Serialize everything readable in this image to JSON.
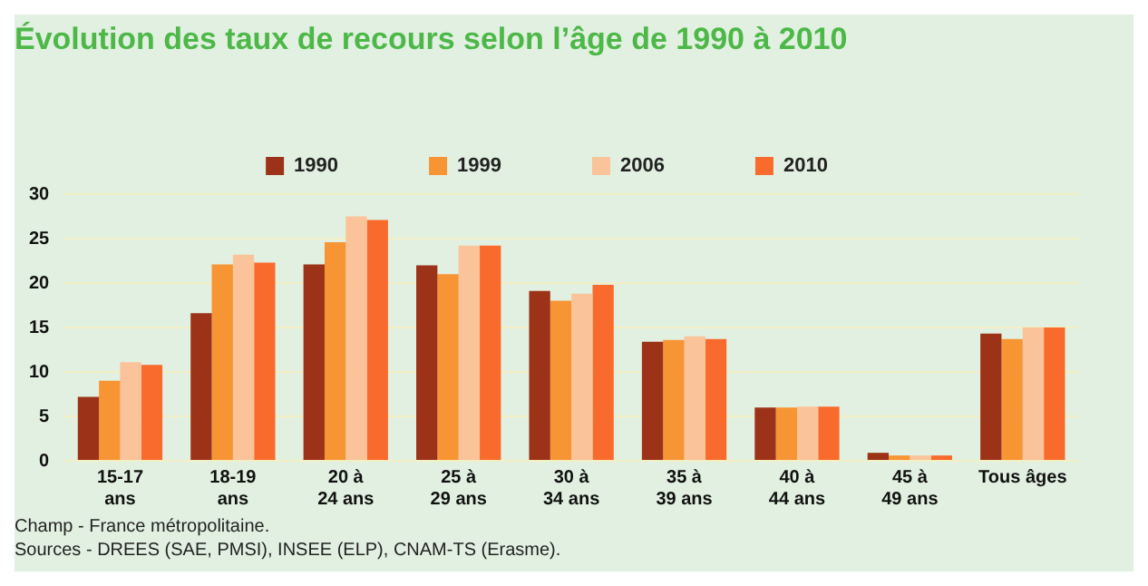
{
  "chart_data": {
    "type": "bar",
    "title": "Évolution des taux de recours selon l’âge de 1990 à 2010",
    "categories": [
      "15-17\nans",
      "18-19\nans",
      "20 à\n24 ans",
      "25 à\n29 ans",
      "30 à\n34 ans",
      "35 à\n39 ans",
      "40 à\n44 ans",
      "45 à\n49 ans",
      "Tous âges"
    ],
    "series": [
      {
        "name": "1990",
        "color": "#9c3318",
        "values": [
          7.2,
          16.6,
          22.1,
          22.0,
          19.1,
          13.4,
          6.0,
          0.9,
          14.3
        ]
      },
      {
        "name": "1999",
        "color": "#f79433",
        "values": [
          9.0,
          22.1,
          24.6,
          21.0,
          18.0,
          13.6,
          6.0,
          0.6,
          13.7
        ]
      },
      {
        "name": "2006",
        "color": "#fbc39a",
        "values": [
          11.1,
          23.2,
          27.5,
          24.2,
          18.8,
          14.0,
          6.1,
          0.6,
          15.0
        ]
      },
      {
        "name": "2010",
        "color": "#f96b2c",
        "values": [
          10.8,
          22.3,
          27.1,
          24.2,
          19.8,
          13.7,
          6.1,
          0.6,
          15.0
        ]
      }
    ],
    "ylim": [
      0,
      30
    ],
    "yticks": [
      0,
      5,
      10,
      15,
      20,
      25,
      30
    ],
    "grid": "y",
    "legend": "top",
    "annotations": [
      "Champ - France métropolitaine.",
      "Sources - DREES (SAE, PMSI), INSEE (ELP), CNAM-TS (Erasme)."
    ]
  }
}
